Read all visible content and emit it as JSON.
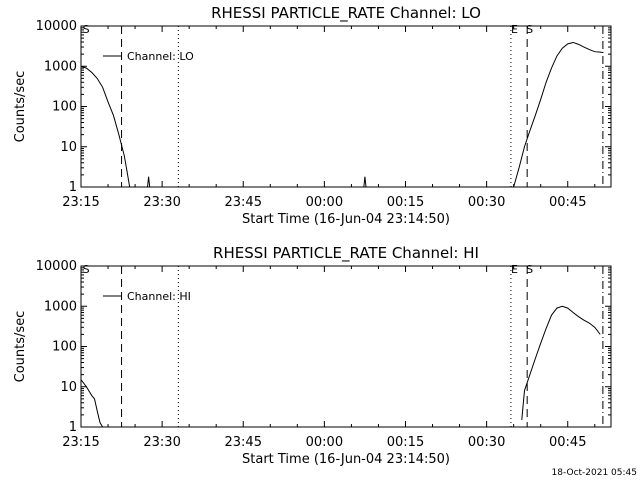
{
  "footer": {
    "timestamp": "18-Oct-2021 05:45"
  },
  "chart_data": [
    {
      "type": "line",
      "title": "RHESSI PARTICLE_RATE Channel: LO",
      "xlabel": "Start Time (16-Jun-04 23:14:50)",
      "ylabel": "Counts/sec",
      "yscale": "log",
      "ylim": [
        1,
        10000
      ],
      "xlim_minutes": [
        0,
        98
      ],
      "x_tick_labels": [
        "23:15",
        "23:30",
        "23:45",
        "00:00",
        "00:15",
        "00:30",
        "00:45"
      ],
      "x_tick_minutes": [
        0,
        15,
        30,
        45,
        60,
        75,
        90
      ],
      "y_tick_labels": [
        "1",
        "10",
        "100",
        "1000",
        "10000"
      ],
      "y_tick_values": [
        1,
        10,
        100,
        1000,
        10000
      ],
      "grid": false,
      "legend": {
        "position": "top-left",
        "entries": [
          "Channel: LO"
        ]
      },
      "vlines": [
        {
          "style": "dash",
          "minute": 7.5
        },
        {
          "style": "dot",
          "minute": 18
        },
        {
          "style": "dot",
          "minute": 79.5
        },
        {
          "style": "dash",
          "minute": 82.5
        },
        {
          "style": "dashdot",
          "minute": 96.5
        }
      ],
      "annotations": [
        {
          "text": "S",
          "minute": 0.3
        },
        {
          "text": "E",
          "minute": 79.5
        },
        {
          "text": "S",
          "minute": 82.3
        }
      ],
      "series": [
        {
          "name": "Channel: LO",
          "segments": [
            [
              [
                0,
                1000
              ],
              [
                1,
                900
              ],
              [
                2,
                700
              ],
              [
                3,
                500
              ],
              [
                4,
                300
              ],
              [
                5,
                130
              ],
              [
                6,
                60
              ],
              [
                7,
                20
              ],
              [
                8,
                6
              ],
              [
                8.5,
                2.5
              ],
              [
                9,
                1
              ]
            ],
            [
              [
                12.3,
                1
              ],
              [
                12.5,
                1.8
              ],
              [
                12.7,
                1
              ]
            ],
            [
              [
                52.3,
                1
              ],
              [
                52.5,
                1.8
              ],
              [
                52.7,
                1
              ]
            ],
            [
              [
                80,
                1
              ],
              [
                81,
                3
              ],
              [
                82,
                10
              ],
              [
                83,
                25
              ],
              [
                84,
                60
              ],
              [
                85,
                150
              ],
              [
                86,
                400
              ],
              [
                87,
                900
              ],
              [
                88,
                1800
              ],
              [
                89,
                2800
              ],
              [
                90,
                3600
              ],
              [
                91,
                3900
              ],
              [
                92,
                3500
              ],
              [
                93,
                3000
              ],
              [
                94,
                2600
              ],
              [
                95,
                2300
              ],
              [
                96,
                2250
              ],
              [
                96.5,
                2200
              ]
            ]
          ]
        }
      ]
    },
    {
      "type": "line",
      "title": "RHESSI PARTICLE_RATE Channel: HI",
      "xlabel": "Start Time (16-Jun-04 23:14:50)",
      "ylabel": "Counts/sec",
      "yscale": "log",
      "ylim": [
        1,
        10000
      ],
      "xlim_minutes": [
        0,
        98
      ],
      "x_tick_labels": [
        "23:15",
        "23:30",
        "23:45",
        "00:00",
        "00:15",
        "00:30",
        "00:45"
      ],
      "x_tick_minutes": [
        0,
        15,
        30,
        45,
        60,
        75,
        90
      ],
      "y_tick_labels": [
        "1",
        "10",
        "100",
        "1000",
        "10000"
      ],
      "y_tick_values": [
        1,
        10,
        100,
        1000,
        10000
      ],
      "grid": false,
      "legend": {
        "position": "top-left",
        "entries": [
          "Channel: HI"
        ]
      },
      "vlines": [
        {
          "style": "dash",
          "minute": 7.5
        },
        {
          "style": "dot",
          "minute": 18
        },
        {
          "style": "dot",
          "minute": 79.5
        },
        {
          "style": "dash",
          "minute": 82.5
        },
        {
          "style": "dashdot",
          "minute": 96.5
        }
      ],
      "annotations": [
        {
          "text": "S",
          "minute": 0.3
        },
        {
          "text": "E",
          "minute": 79.5
        },
        {
          "text": "S",
          "minute": 82.3
        }
      ],
      "series": [
        {
          "name": "Channel: HI",
          "segments": [
            [
              [
                0,
                15
              ],
              [
                1,
                10
              ],
              [
                2,
                6
              ],
              [
                2.5,
                5
              ],
              [
                3,
                2.5
              ],
              [
                3.5,
                1.3
              ],
              [
                4,
                1
              ]
            ],
            [
              [
                81.5,
                1.5
              ],
              [
                82,
                8
              ],
              [
                83,
                20
              ],
              [
                84,
                50
              ],
              [
                85,
                120
              ],
              [
                86,
                280
              ],
              [
                87,
                600
              ],
              [
                88,
                900
              ],
              [
                89,
                1000
              ],
              [
                90,
                900
              ],
              [
                91,
                700
              ],
              [
                92,
                550
              ],
              [
                93,
                450
              ],
              [
                94,
                380
              ],
              [
                95,
                300
              ],
              [
                96,
                200
              ]
            ]
          ]
        }
      ]
    }
  ]
}
